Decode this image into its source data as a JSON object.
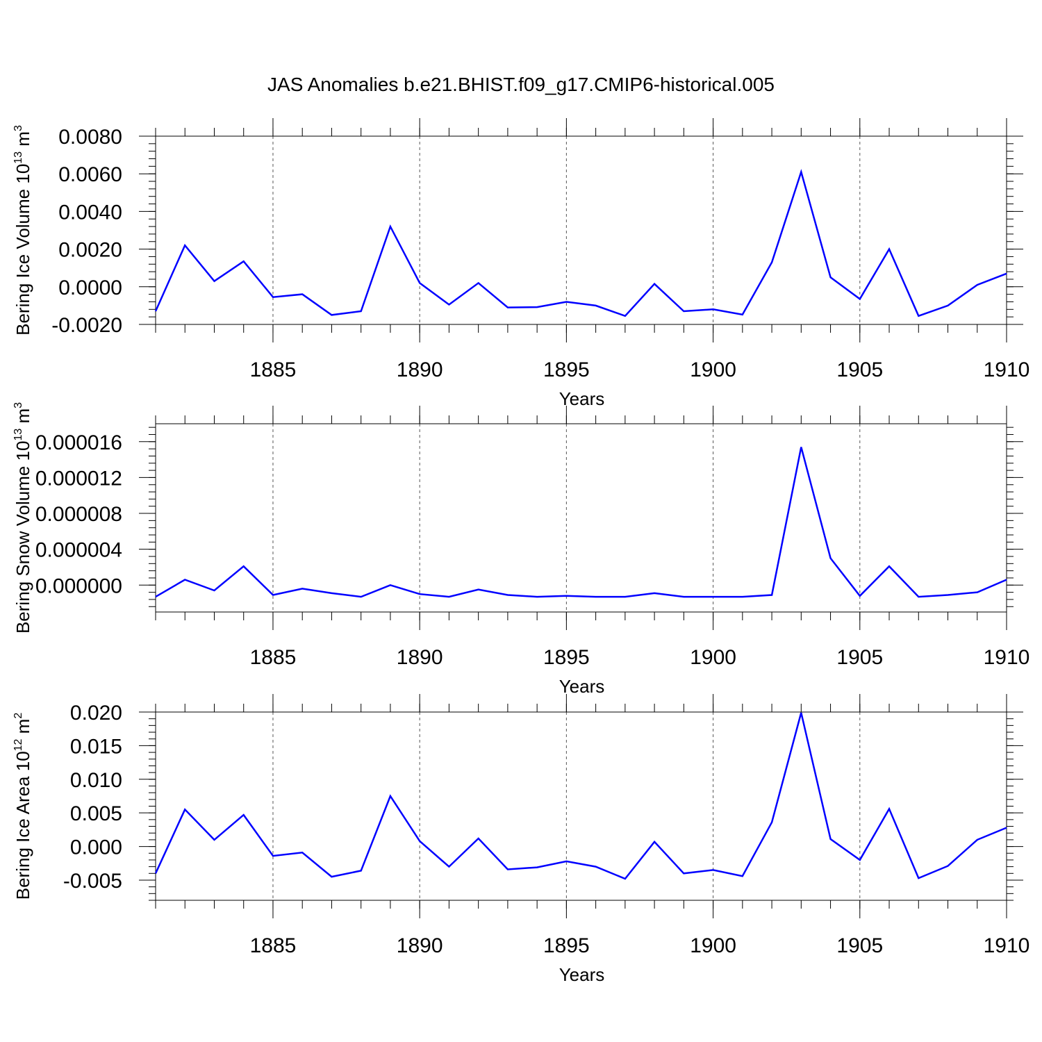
{
  "title": "JAS Anomalies b.e21.BHIST.f09_g17.CMIP6-historical.005",
  "colors": {
    "series": "#0000ff",
    "axis": "#000000",
    "grid": "#555555",
    "background": "#ffffff"
  },
  "chart_data": [
    {
      "type": "line",
      "title": "",
      "xlabel": "Years",
      "ylabel": {
        "main": "Bering Ice Volume 10",
        "exp": "13",
        "unit": "m",
        "unit_exp": "3"
      },
      "xlim": [
        1881,
        1910
      ],
      "ylim": [
        -0.002,
        0.008
      ],
      "yticks": [
        -0.002,
        0.0,
        0.002,
        0.004,
        0.006,
        0.008
      ],
      "ytick_labels": [
        "-0.0020",
        "0.0000",
        "0.0020",
        "0.0040",
        "0.0060",
        "0.0080"
      ],
      "xticks": [
        1885,
        1890,
        1895,
        1900,
        1905,
        1910
      ],
      "xtick_labels": [
        "1885",
        "1890",
        "1895",
        "1900",
        "1905",
        "1910"
      ],
      "grid": "vertical dashed at major x ticks",
      "x": [
        1881,
        1882,
        1883,
        1884,
        1885,
        1886,
        1887,
        1888,
        1889,
        1890,
        1891,
        1892,
        1893,
        1894,
        1895,
        1896,
        1897,
        1898,
        1899,
        1900,
        1901,
        1902,
        1903,
        1904,
        1905,
        1906,
        1907,
        1908,
        1909,
        1910
      ],
      "series": [
        {
          "name": "Bering Ice Volume",
          "values": [
            -0.0013,
            0.0022,
            0.0003,
            0.00135,
            -0.00055,
            -0.0004,
            -0.0015,
            -0.0013,
            0.0032,
            0.0002,
            -0.00095,
            0.0002,
            -0.0011,
            -0.00108,
            -0.0008,
            -0.001,
            -0.00155,
            0.00015,
            -0.0013,
            -0.0012,
            -0.00148,
            0.0013,
            0.0061,
            0.0005,
            -0.00065,
            0.002,
            -0.00155,
            -0.001,
            0.0001,
            0.0007
          ]
        }
      ]
    },
    {
      "type": "line",
      "title": "",
      "xlabel": "Years",
      "ylabel": {
        "main": "Bering Snow Volume 10",
        "exp": "13",
        "unit": "m",
        "unit_exp": "3"
      },
      "xlim": [
        1881,
        1910
      ],
      "ylim": [
        -3e-06,
        1.8e-05
      ],
      "yticks": [
        0.0,
        4e-06,
        8e-06,
        1.2e-05,
        1.6e-05
      ],
      "ytick_labels": [
        "0.000000",
        "0.000004",
        "0.000008",
        "0.000012",
        "0.000016"
      ],
      "xticks": [
        1885,
        1890,
        1895,
        1900,
        1905,
        1910
      ],
      "xtick_labels": [
        "1885",
        "1890",
        "1895",
        "1900",
        "1905",
        "1910"
      ],
      "grid": "vertical dashed at major x ticks",
      "x": [
        1881,
        1882,
        1883,
        1884,
        1885,
        1886,
        1887,
        1888,
        1889,
        1890,
        1891,
        1892,
        1893,
        1894,
        1895,
        1896,
        1897,
        1898,
        1899,
        1900,
        1901,
        1902,
        1903,
        1904,
        1905,
        1906,
        1907,
        1908,
        1909,
        1910
      ],
      "series": [
        {
          "name": "Bering Snow Volume",
          "values": [
            -1.3e-06,
            6e-07,
            -6e-07,
            2.1e-06,
            -1.1e-06,
            -4e-07,
            -9e-07,
            -1.3e-06,
            0.0,
            -1e-06,
            -1.3e-06,
            -5e-07,
            -1.1e-06,
            -1.3e-06,
            -1.2e-06,
            -1.3e-06,
            -1.3e-06,
            -9e-07,
            -1.3e-06,
            -1.3e-06,
            -1.3e-06,
            -1.1e-06,
            1.54e-05,
            3e-06,
            -1.2e-06,
            2.1e-06,
            -1.3e-06,
            -1.1e-06,
            -8e-07,
            6e-07
          ]
        }
      ]
    },
    {
      "type": "line",
      "title": "",
      "xlabel": "Years",
      "ylabel": {
        "main": "Bering Ice Area 10",
        "exp": "12",
        "unit": "m",
        "unit_exp": "2"
      },
      "xlim": [
        1881,
        1910
      ],
      "ylim": [
        -0.008,
        0.02
      ],
      "yticks": [
        -0.005,
        0.0,
        0.005,
        0.01,
        0.015,
        0.02
      ],
      "ytick_labels": [
        "-0.005",
        "0.000",
        "0.005",
        "0.010",
        "0.015",
        "0.020"
      ],
      "xticks": [
        1885,
        1890,
        1895,
        1900,
        1905,
        1910
      ],
      "xtick_labels": [
        "1885",
        "1890",
        "1895",
        "1900",
        "1905",
        "1910"
      ],
      "grid": "vertical dashed at major x ticks",
      "x": [
        1881,
        1882,
        1883,
        1884,
        1885,
        1886,
        1887,
        1888,
        1889,
        1890,
        1891,
        1892,
        1893,
        1894,
        1895,
        1896,
        1897,
        1898,
        1899,
        1900,
        1901,
        1902,
        1903,
        1904,
        1905,
        1906,
        1907,
        1908,
        1909,
        1910
      ],
      "series": [
        {
          "name": "Bering Ice Area",
          "values": [
            -0.004,
            0.0055,
            0.001,
            0.0047,
            -0.0014,
            -0.0009,
            -0.0045,
            -0.0036,
            0.0075,
            0.0008,
            -0.003,
            0.0012,
            -0.0034,
            -0.0031,
            -0.0022,
            -0.003,
            -0.0048,
            0.0007,
            -0.004,
            -0.0035,
            -0.0044,
            0.0036,
            0.0199,
            0.0011,
            -0.002,
            0.0056,
            -0.0047,
            -0.0029,
            0.001,
            0.0028
          ]
        }
      ]
    }
  ]
}
